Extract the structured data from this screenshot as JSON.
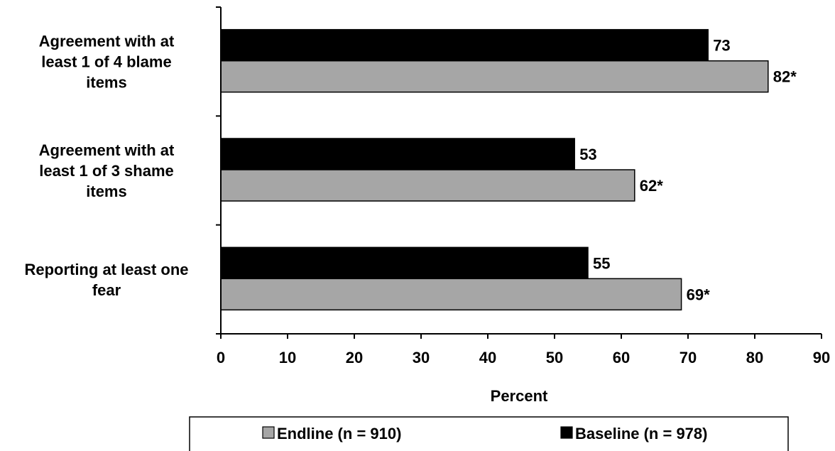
{
  "chart_data": {
    "type": "bar",
    "orientation": "horizontal",
    "categories": [
      "Agreement with at least 1 of 4 blame items",
      "Agreement with at least 1 of 3 shame items",
      "Reporting at least one fear"
    ],
    "category_label_lines": [
      [
        "Agreement with at",
        "least 1 of 4 blame",
        "items"
      ],
      [
        "Agreement with at",
        "least 1 of 3 shame",
        "items"
      ],
      [
        "Reporting at least one",
        "fear"
      ]
    ],
    "series": [
      {
        "name": "Baseline (n = 978)",
        "values": [
          73,
          53,
          55
        ],
        "labels": [
          "73",
          "53",
          "55"
        ],
        "color": "#000000"
      },
      {
        "name": "Endline (n = 910)",
        "values": [
          82,
          62,
          69
        ],
        "labels": [
          "82*",
          "62*",
          "69*"
        ],
        "color": "#a6a6a6"
      }
    ],
    "xlabel": "Percent",
    "xlim": [
      0,
      90
    ],
    "xticks": [
      0,
      10,
      20,
      30,
      40,
      50,
      60,
      70,
      80,
      90
    ],
    "grid": false,
    "legend": {
      "position": "bottom",
      "entries": [
        {
          "label": "Endline (n = 910)",
          "color": "#a6a6a6"
        },
        {
          "label": "Baseline (n = 978)",
          "color": "#000000"
        }
      ]
    }
  }
}
